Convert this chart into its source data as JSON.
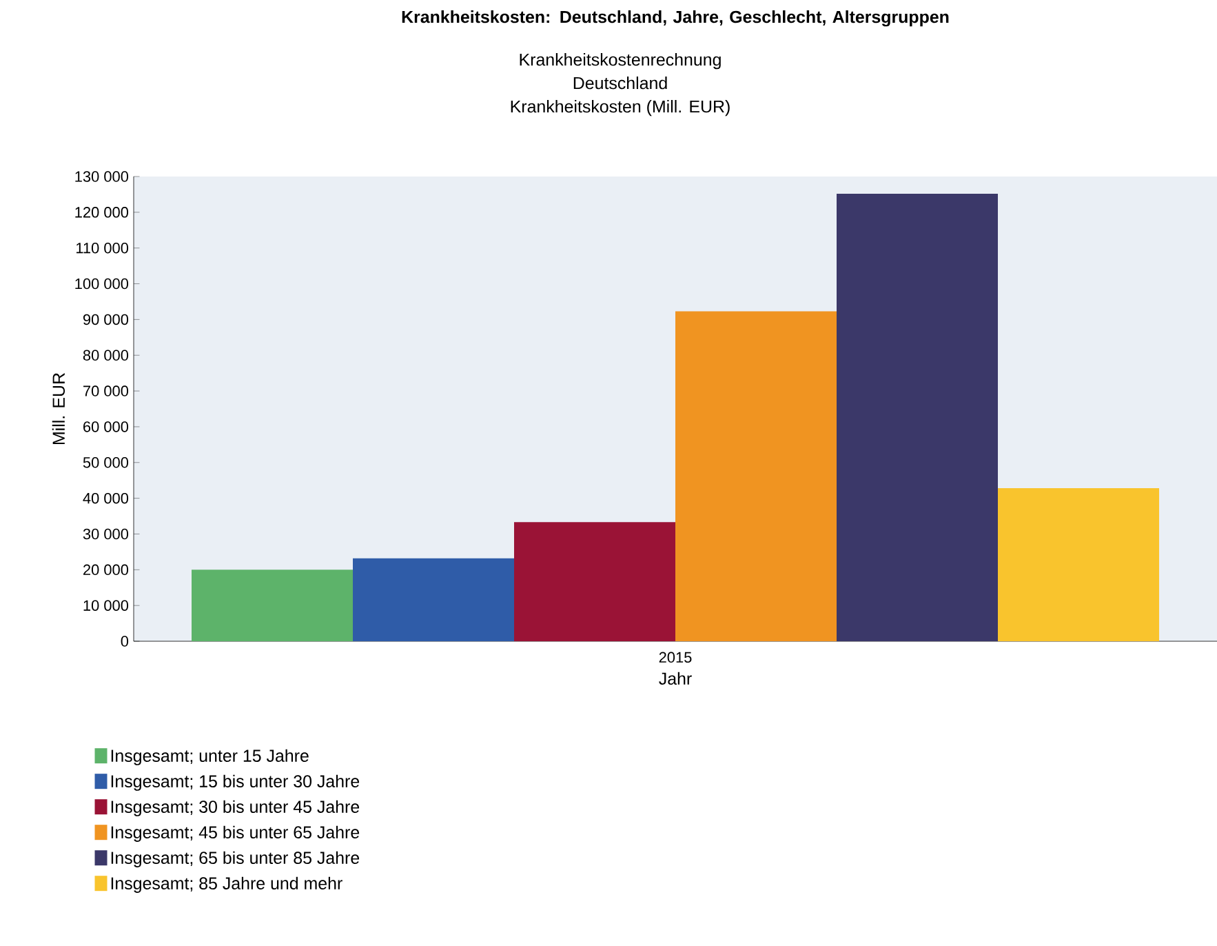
{
  "chart_data": {
    "type": "bar",
    "title": "Krankheitskosten: Deutschland, Jahre, Geschlecht, Altersgruppen",
    "subtitle": "Krankheitskostenrechnung",
    "annotations": [
      "Deutschland",
      "Krankheitskosten (Mill. EUR)"
    ],
    "xlabel": "Jahr",
    "ylabel": "Mill. EUR",
    "categories": [
      "2015"
    ],
    "series": [
      {
        "name": "Insgesamt; unter 15 Jahre",
        "color": "#5db36a",
        "values": [
          20000
        ]
      },
      {
        "name": "Insgesamt; 15 bis unter 30 Jahre",
        "color": "#2f5ca8",
        "values": [
          23200
        ]
      },
      {
        "name": "Insgesamt; 30 bis unter 45 Jahre",
        "color": "#9a1336",
        "values": [
          33300
        ]
      },
      {
        "name": "Insgesamt; 45 bis unter 65 Jahre",
        "color": "#f09421",
        "values": [
          92300
        ]
      },
      {
        "name": "Insgesamt; 65 bis unter 85 Jahre",
        "color": "#3b3869",
        "values": [
          125200
        ]
      },
      {
        "name": "Insgesamt; 85 Jahre und mehr",
        "color": "#f9c42d",
        "values": [
          42800
        ]
      }
    ],
    "ylim": [
      0,
      130000
    ],
    "yticks": [
      0,
      {
        "value": 10000,
        "label": "10 000"
      },
      {
        "value": 20000,
        "label": "20 000"
      },
      {
        "value": 30000,
        "label": "30 000"
      },
      {
        "value": 40000,
        "label": "40 000"
      },
      {
        "value": 50000,
        "label": "50 000"
      },
      {
        "value": 60000,
        "label": "60 000"
      },
      {
        "value": 70000,
        "label": "70 000"
      },
      {
        "value": 80000,
        "label": "80 000"
      },
      {
        "value": 90000,
        "label": "90 000"
      },
      {
        "value": 100000,
        "label": "100 000"
      },
      {
        "value": 110000,
        "label": "110 000"
      },
      {
        "value": 120000,
        "label": "120 000"
      },
      {
        "value": 130000,
        "label": "130 000"
      }
    ],
    "grid": false,
    "legend": "bottom left"
  }
}
